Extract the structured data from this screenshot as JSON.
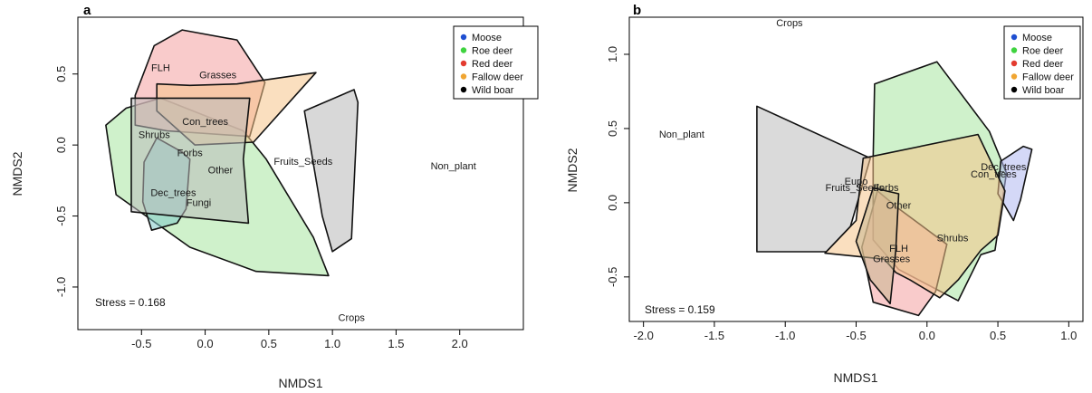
{
  "chart_data": [
    {
      "panel": "a",
      "type": "scatter",
      "xlabel": "NMDS1",
      "ylabel": "NMDS2",
      "xlim": [
        -1.0,
        2.5
      ],
      "ylim": [
        -1.3,
        0.9
      ],
      "xticks": [
        "-0.5",
        "0.0",
        "0.5",
        "1.0",
        "1.5",
        "2.0"
      ],
      "yticks": [
        "-1.0",
        "-0.5",
        "0.0",
        "0.5"
      ],
      "stress": "Stress = 0.168",
      "food_items": [
        {
          "label": "FLH",
          "x": -0.35,
          "y": 0.52
        },
        {
          "label": "Grasses",
          "x": 0.1,
          "y": 0.47
        },
        {
          "label": "Con_trees",
          "x": 0.0,
          "y": 0.14
        },
        {
          "label": "Shrubs",
          "x": -0.4,
          "y": 0.05
        },
        {
          "label": "Forbs",
          "x": -0.12,
          "y": -0.08
        },
        {
          "label": "Other",
          "x": 0.12,
          "y": -0.2
        },
        {
          "label": "Fruits_Seeds",
          "x": 0.77,
          "y": -0.14
        },
        {
          "label": "Non_plant",
          "x": 1.95,
          "y": -0.17
        },
        {
          "label": "Dec_trees",
          "x": -0.25,
          "y": -0.36
        },
        {
          "label": "Fungi",
          "x": -0.05,
          "y": -0.43
        },
        {
          "label": "Crops",
          "x": 1.15,
          "y": -1.24
        }
      ],
      "hulls": [
        {
          "species": "Roe deer",
          "color": "#a8e6a0",
          "points": [
            [
              -0.78,
              0.14
            ],
            [
              -0.62,
              0.26
            ],
            [
              -0.35,
              0.33
            ],
            [
              0.3,
              0.1
            ],
            [
              0.48,
              -0.1
            ],
            [
              0.85,
              -0.65
            ],
            [
              0.97,
              -0.92
            ],
            [
              0.4,
              -0.89
            ],
            [
              -0.12,
              -0.72
            ],
            [
              -0.7,
              -0.35
            ]
          ]
        },
        {
          "species": "Red deer",
          "color": "#f4a0a0",
          "points": [
            [
              -0.55,
              0.35
            ],
            [
              -0.4,
              0.7
            ],
            [
              -0.18,
              0.81
            ],
            [
              0.25,
              0.74
            ],
            [
              0.47,
              0.44
            ],
            [
              0.35,
              0.06
            ],
            [
              -0.3,
              0.1
            ],
            [
              -0.55,
              0.14
            ]
          ]
        },
        {
          "species": "Fallow deer",
          "color": "#f6c58a",
          "points": [
            [
              -0.38,
              0.43
            ],
            [
              -0.12,
              0.42
            ],
            [
              0.25,
              0.43
            ],
            [
              0.87,
              0.51
            ],
            [
              0.38,
              0.02
            ],
            [
              -0.08,
              0.0
            ],
            [
              -0.38,
              0.24
            ]
          ]
        },
        {
          "species": "Moose",
          "color": "#7fc8c8",
          "points": [
            [
              -0.38,
              0.05
            ],
            [
              -0.18,
              -0.05
            ],
            [
              -0.12,
              -0.1
            ],
            [
              -0.15,
              -0.45
            ],
            [
              -0.22,
              -0.55
            ],
            [
              -0.42,
              -0.6
            ],
            [
              -0.49,
              -0.4
            ],
            [
              -0.48,
              -0.12
            ]
          ]
        },
        {
          "species": "Wild boar",
          "color": "#bcbcbc",
          "points": [
            [
              -0.58,
              0.33
            ],
            [
              0.35,
              0.33
            ],
            [
              0.3,
              -0.1
            ],
            [
              0.34,
              -0.55
            ],
            [
              -0.58,
              -0.47
            ]
          ]
        },
        {
          "species": "Wild boar",
          "color": "#b8b8b8",
          "points": [
            [
              0.78,
              0.24
            ],
            [
              1.17,
              0.39
            ],
            [
              1.2,
              0.3
            ],
            [
              1.15,
              -0.66
            ],
            [
              1.0,
              -0.75
            ],
            [
              0.92,
              -0.5
            ]
          ]
        }
      ],
      "legend": [
        {
          "label": "Moose",
          "color": "#1f4fd1"
        },
        {
          "label": "Roe deer",
          "color": "#3fd33f"
        },
        {
          "label": "Red deer",
          "color": "#e33b2f"
        },
        {
          "label": "Fallow deer",
          "color": "#f0a532"
        },
        {
          "label": "Wild boar",
          "color": "#000000"
        }
      ],
      "legend_position": "top-right"
    },
    {
      "panel": "b",
      "type": "scatter",
      "xlabel": "NMDS1",
      "ylabel": "NMDS2",
      "xlim": [
        -2.1,
        1.1
      ],
      "ylim": [
        -0.8,
        1.25
      ],
      "xticks": [
        "-2.0",
        "-1.5",
        "-1.0",
        "-0.5",
        "0.0",
        "0.5",
        "1.0"
      ],
      "yticks": [
        "-0.5",
        "0.0",
        "0.5",
        "1.0"
      ],
      "stress": "Stress = 0.159",
      "food_items": [
        {
          "label": "Crops",
          "x": -0.97,
          "y": 1.19
        },
        {
          "label": "Non_plant",
          "x": -1.73,
          "y": 0.44
        },
        {
          "label": "Dec_trees",
          "x": 0.54,
          "y": 0.22
        },
        {
          "label": "Con_trees",
          "x": 0.47,
          "y": 0.17
        },
        {
          "label": "Eupo",
          "x": -0.5,
          "y": 0.12
        },
        {
          "label": "Fruits_Seeds",
          "x": -0.51,
          "y": 0.08
        },
        {
          "label": "Forbs",
          "x": -0.29,
          "y": 0.08
        },
        {
          "label": "Other",
          "x": -0.2,
          "y": -0.04
        },
        {
          "label": "Shrubs",
          "x": 0.18,
          "y": -0.26
        },
        {
          "label": "FLH",
          "x": -0.2,
          "y": -0.33
        },
        {
          "label": "Grasses",
          "x": -0.25,
          "y": -0.4
        }
      ],
      "hulls": [
        {
          "species": "Roe deer",
          "color": "#a8e6a0",
          "points": [
            [
              -0.37,
              0.8
            ],
            [
              0.07,
              0.95
            ],
            [
              0.44,
              0.48
            ],
            [
              0.56,
              0.2
            ],
            [
              0.48,
              -0.32
            ],
            [
              0.38,
              -0.35
            ],
            [
              0.22,
              -0.66
            ],
            [
              -0.2,
              -0.45
            ],
            [
              -0.38,
              -0.25
            ],
            [
              -0.38,
              0.3
            ]
          ]
        },
        {
          "species": "Moose",
          "color": "#b0b8f0",
          "points": [
            [
              0.52,
              0.28
            ],
            [
              0.68,
              0.38
            ],
            [
              0.74,
              0.36
            ],
            [
              0.66,
              0.02
            ],
            [
              0.61,
              -0.12
            ],
            [
              0.5,
              0.06
            ]
          ]
        },
        {
          "species": "Red deer",
          "color": "#f4a0a0",
          "points": [
            [
              -0.35,
              0.08
            ],
            [
              -0.2,
              -0.04
            ],
            [
              0.14,
              -0.28
            ],
            [
              0.06,
              -0.6
            ],
            [
              -0.06,
              -0.76
            ],
            [
              -0.38,
              -0.67
            ],
            [
              -0.46,
              -0.3
            ]
          ]
        },
        {
          "species": "Wild boar",
          "color": "#bcbcbc",
          "points": [
            [
              -1.2,
              0.65
            ],
            [
              -0.4,
              0.3
            ],
            [
              -0.54,
              -0.16
            ],
            [
              -0.71,
              -0.33
            ],
            [
              -1.2,
              -0.33
            ]
          ]
        },
        {
          "species": "Fallow deer",
          "color": "#f6c58a",
          "points": [
            [
              -0.45,
              0.3
            ],
            [
              0.36,
              0.46
            ],
            [
              0.55,
              0.08
            ],
            [
              0.5,
              -0.22
            ],
            [
              0.38,
              -0.32
            ],
            [
              0.22,
              -0.52
            ],
            [
              0.09,
              -0.64
            ],
            [
              -0.12,
              -0.52
            ],
            [
              -0.22,
              -0.47
            ],
            [
              -0.3,
              -0.38
            ],
            [
              -0.72,
              -0.34
            ],
            [
              -0.5,
              -0.12
            ]
          ]
        },
        {
          "species": "Wild boar",
          "color": "#c8b68f",
          "points": [
            [
              -0.38,
              0.1
            ],
            [
              -0.2,
              0.06
            ],
            [
              -0.22,
              -0.32
            ],
            [
              -0.26,
              -0.68
            ],
            [
              -0.4,
              -0.52
            ],
            [
              -0.5,
              -0.26
            ]
          ]
        }
      ],
      "legend": [
        {
          "label": "Moose",
          "color": "#1f4fd1"
        },
        {
          "label": "Roe deer",
          "color": "#3fd33f"
        },
        {
          "label": "Red deer",
          "color": "#e33b2f"
        },
        {
          "label": "Fallow deer",
          "color": "#f0a532"
        },
        {
          "label": "Wild boar",
          "color": "#000000"
        }
      ],
      "legend_position": "top-right"
    }
  ]
}
